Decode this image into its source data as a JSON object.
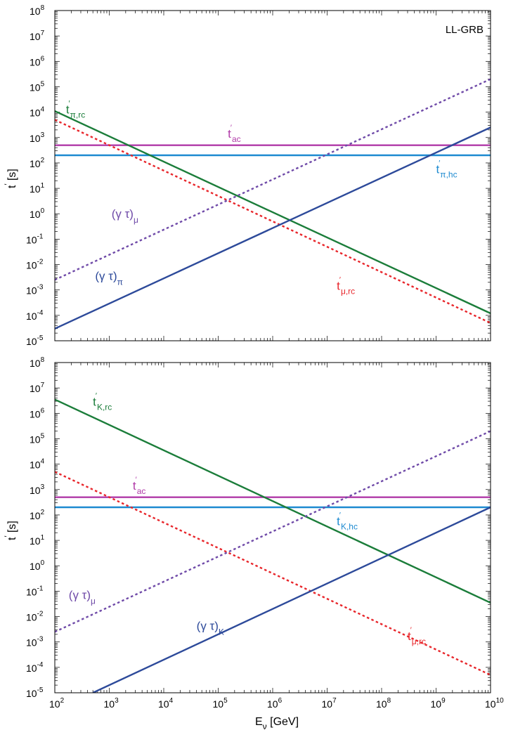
{
  "chart_data": [
    {
      "type": "line",
      "annotation": "LL-GRB",
      "xlabel_main": "E",
      "xlabel_sub": "ν",
      "xlabel_rest": " [GeV]",
      "ylabel_main": "t",
      "ylabel_rest": " [s]",
      "xscale": "log",
      "yscale": "log",
      "xlim": [
        100,
        10000000000
      ],
      "ylim": [
        1e-05,
        100000000
      ],
      "xtick_exponents": [
        "2",
        "3",
        "4",
        "5",
        "6",
        "7",
        "8",
        "9",
        "10"
      ],
      "ytick_exponents": [
        "-5",
        "-4",
        "-3",
        "-2",
        "-1",
        "0",
        "1",
        "2",
        "3",
        "4",
        "5",
        "6",
        "7",
        "8"
      ],
      "series": [
        {
          "key": "t_ac",
          "x": [
            100,
            10000000000
          ],
          "y": [
            500,
            500
          ],
          "color": "#b03aa8",
          "style": "solid",
          "label": {
            "main": "t",
            "sub": "ac",
            "lx": 150000,
            "ly": 1000
          }
        },
        {
          "key": "t_pi_hc",
          "x": [
            100,
            10000000000
          ],
          "y": [
            200,
            200
          ],
          "color": "#1d8ad0",
          "style": "solid",
          "label": {
            "main": "t",
            "sub": "π,hc",
            "lx": 1000000000,
            "ly": 40
          }
        },
        {
          "key": "t_pi_rc",
          "x": [
            100,
            10000000000
          ],
          "y": [
            11000,
            0.00012
          ],
          "color": "#1b7d3a",
          "style": "solid",
          "label": {
            "main": "t",
            "sub": "π,rc",
            "lx": 160,
            "ly": 9000
          }
        },
        {
          "key": "t_mu_rc",
          "x": [
            100,
            10000000000
          ],
          "y": [
            5000,
            5e-05
          ],
          "color": "#e8262b",
          "style": "dashed",
          "label": {
            "main": "t",
            "sub": "μ,rc",
            "lx": 15000000,
            "ly": 0.001
          }
        },
        {
          "key": "gt_mu",
          "x": [
            100,
            10000000000
          ],
          "y": [
            0.0025,
            200000
          ],
          "color": "#6f4aa8",
          "style": "dashed",
          "label": {
            "main": "(γ τ)",
            "sub": "μ",
            "lx": 1100,
            "ly": 0.7
          }
        },
        {
          "key": "gt_pi",
          "x": [
            100,
            10000000000
          ],
          "y": [
            3e-05,
            2500
          ],
          "color": "#2d4a9a",
          "style": "solid",
          "label": {
            "main": "(γ τ)",
            "sub": "π",
            "lx": 550,
            "ly": 0.0025
          }
        }
      ]
    },
    {
      "type": "line",
      "xlabel_main": "E",
      "xlabel_sub": "ν",
      "xlabel_rest": " [GeV]",
      "ylabel_main": "t",
      "ylabel_rest": " [s]",
      "xscale": "log",
      "yscale": "log",
      "xlim": [
        100,
        10000000000
      ],
      "ylim": [
        1e-05,
        100000000
      ],
      "xtick_exponents": [
        "2",
        "3",
        "4",
        "5",
        "6",
        "7",
        "8",
        "9",
        "10"
      ],
      "ytick_exponents": [
        "-5",
        "-4",
        "-3",
        "-2",
        "-1",
        "0",
        "1",
        "2",
        "3",
        "4",
        "5",
        "6",
        "7",
        "8"
      ],
      "series": [
        {
          "key": "t_ac",
          "x": [
            100,
            10000000000
          ],
          "y": [
            500,
            500
          ],
          "color": "#b03aa8",
          "style": "solid",
          "label": {
            "main": "t",
            "sub": "ac",
            "lx": 2700,
            "ly": 1000
          }
        },
        {
          "key": "t_K_hc",
          "x": [
            100,
            10000000000
          ],
          "y": [
            200,
            200
          ],
          "color": "#1d8ad0",
          "style": "solid",
          "label": {
            "main": "t",
            "sub": "K,hc",
            "lx": 15000000,
            "ly": 40
          }
        },
        {
          "key": "t_K_rc",
          "x": [
            100,
            10000000000
          ],
          "y": [
            3500000,
            0.035
          ],
          "color": "#1b7d3a",
          "style": "solid",
          "label": {
            "main": "t",
            "sub": "K,rc",
            "lx": 500,
            "ly": 2000000
          }
        },
        {
          "key": "t_mu_rc",
          "x": [
            100,
            10000000000
          ],
          "y": [
            5000,
            5e-05
          ],
          "color": "#e8262b",
          "style": "dashed",
          "label": {
            "main": "t",
            "sub": "μ,rc",
            "lx": 300000000,
            "ly": 0.0012
          }
        },
        {
          "key": "gt_mu",
          "x": [
            100,
            10000000000
          ],
          "y": [
            0.0025,
            200000
          ],
          "color": "#6f4aa8",
          "style": "dashed",
          "label": {
            "main": "(γ τ)",
            "sub": "μ",
            "lx": 180,
            "ly": 0.05
          }
        },
        {
          "key": "gt_K",
          "x": [
            500,
            10000000000
          ],
          "y": [
            1e-05,
            200
          ],
          "color": "#2d4a9a",
          "style": "solid",
          "label": {
            "main": "(γ τ)",
            "sub": "K",
            "lx": 40000,
            "ly": 0.003
          }
        }
      ]
    }
  ]
}
